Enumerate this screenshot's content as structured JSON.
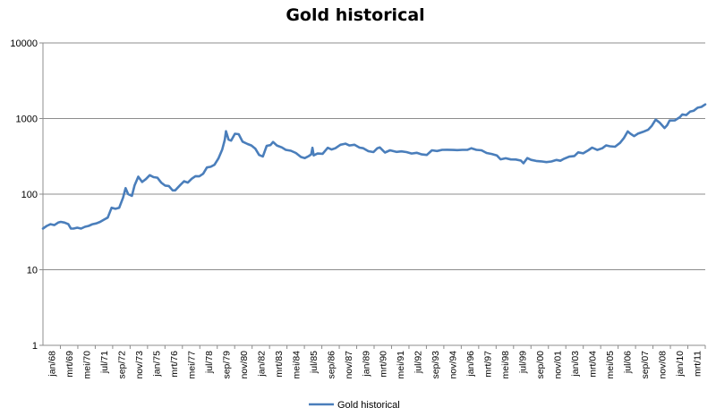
{
  "chart_data": {
    "type": "line",
    "title": "Gold historical",
    "y_scale": "log",
    "ylim": [
      1,
      10000
    ],
    "y_ticks": [
      {
        "value": 1,
        "label": "1"
      },
      {
        "value": 10,
        "label": "10"
      },
      {
        "value": 100,
        "label": "100"
      },
      {
        "value": 1000,
        "label": "1000"
      },
      {
        "value": 10000,
        "label": "10000"
      }
    ],
    "x_ticks": [
      "jan/68",
      "mrt/69",
      "mei/70",
      "jul/71",
      "sep/72",
      "nov/73",
      "jan/75",
      "mrt/76",
      "mei/77",
      "jul/78",
      "sep/79",
      "nov/80",
      "jan/82",
      "mrt/83",
      "mei/84",
      "jul/85",
      "sep/86",
      "nov/87",
      "jan/89",
      "mrt/90",
      "mei/91",
      "jul/92",
      "sep/93",
      "nov/94",
      "jan/96",
      "mrt/97",
      "mei/98",
      "jul/99",
      "sep/00",
      "nov/01",
      "jan/03",
      "mrt/04",
      "mei/05",
      "jul/06",
      "sep/07",
      "nov/08",
      "jan/10",
      "mrt/11"
    ],
    "x_range": [
      "1968-01",
      "2011-06"
    ],
    "grid": true,
    "legend_position": "bottom",
    "line_color": "#4a7ebb",
    "series": [
      {
        "name": "Gold historical",
        "points": [
          [
            "1968-01",
            35
          ],
          [
            "1968-04",
            38
          ],
          [
            "1968-07",
            40
          ],
          [
            "1968-10",
            39
          ],
          [
            "1969-01",
            42
          ],
          [
            "1969-03",
            43
          ],
          [
            "1969-06",
            42
          ],
          [
            "1969-09",
            40
          ],
          [
            "1969-11",
            35
          ],
          [
            "1970-01",
            35
          ],
          [
            "1970-04",
            36
          ],
          [
            "1970-07",
            35
          ],
          [
            "1970-10",
            37
          ],
          [
            "1971-01",
            38
          ],
          [
            "1971-04",
            40
          ],
          [
            "1971-07",
            41
          ],
          [
            "1971-10",
            43
          ],
          [
            "1972-01",
            46
          ],
          [
            "1972-04",
            49
          ],
          [
            "1972-07",
            66
          ],
          [
            "1972-10",
            64
          ],
          [
            "1973-01",
            66
          ],
          [
            "1973-04",
            90
          ],
          [
            "1973-06",
            120
          ],
          [
            "1973-08",
            100
          ],
          [
            "1973-11",
            95
          ],
          [
            "1974-01",
            130
          ],
          [
            "1974-04",
            170
          ],
          [
            "1974-07",
            145
          ],
          [
            "1974-10",
            158
          ],
          [
            "1975-01",
            178
          ],
          [
            "1975-04",
            168
          ],
          [
            "1975-07",
            165
          ],
          [
            "1975-10",
            142
          ],
          [
            "1976-01",
            130
          ],
          [
            "1976-04",
            128
          ],
          [
            "1976-07",
            112
          ],
          [
            "1976-09",
            112
          ],
          [
            "1977-01",
            132
          ],
          [
            "1977-04",
            148
          ],
          [
            "1977-07",
            142
          ],
          [
            "1977-10",
            160
          ],
          [
            "1978-01",
            173
          ],
          [
            "1978-04",
            172
          ],
          [
            "1978-07",
            186
          ],
          [
            "1978-10",
            225
          ],
          [
            "1979-01",
            230
          ],
          [
            "1979-04",
            245
          ],
          [
            "1979-07",
            296
          ],
          [
            "1979-10",
            390
          ],
          [
            "1979-12",
            520
          ],
          [
            "1980-01",
            680
          ],
          [
            "1980-03",
            525
          ],
          [
            "1980-05",
            510
          ],
          [
            "1980-08",
            630
          ],
          [
            "1980-11",
            620
          ],
          [
            "1981-02",
            495
          ],
          [
            "1981-06",
            460
          ],
          [
            "1981-09",
            440
          ],
          [
            "1981-12",
            400
          ],
          [
            "1982-03",
            330
          ],
          [
            "1982-06",
            315
          ],
          [
            "1982-09",
            435
          ],
          [
            "1982-12",
            445
          ],
          [
            "1983-02",
            490
          ],
          [
            "1983-05",
            440
          ],
          [
            "1983-09",
            415
          ],
          [
            "1983-12",
            385
          ],
          [
            "1984-04",
            375
          ],
          [
            "1984-08",
            350
          ],
          [
            "1984-12",
            310
          ],
          [
            "1985-03",
            300
          ],
          [
            "1985-06",
            318
          ],
          [
            "1985-08",
            335
          ],
          [
            "1985-09",
            410
          ],
          [
            "1985-10",
            325
          ],
          [
            "1986-01",
            345
          ],
          [
            "1986-05",
            342
          ],
          [
            "1986-09",
            410
          ],
          [
            "1986-12",
            390
          ],
          [
            "1987-03",
            405
          ],
          [
            "1987-07",
            450
          ],
          [
            "1987-11",
            465
          ],
          [
            "1988-02",
            440
          ],
          [
            "1988-06",
            450
          ],
          [
            "1988-10",
            412
          ],
          [
            "1989-01",
            405
          ],
          [
            "1989-05",
            370
          ],
          [
            "1989-09",
            360
          ],
          [
            "1989-12",
            405
          ],
          [
            "1990-02",
            415
          ],
          [
            "1990-06",
            355
          ],
          [
            "1990-10",
            380
          ],
          [
            "1991-03",
            362
          ],
          [
            "1991-07",
            368
          ],
          [
            "1991-11",
            360
          ],
          [
            "1992-03",
            345
          ],
          [
            "1992-07",
            352
          ],
          [
            "1992-11",
            335
          ],
          [
            "1993-03",
            330
          ],
          [
            "1993-07",
            380
          ],
          [
            "1993-11",
            372
          ],
          [
            "1994-03",
            385
          ],
          [
            "1994-07",
            386
          ],
          [
            "1994-11",
            384
          ],
          [
            "1995-03",
            382
          ],
          [
            "1995-07",
            385
          ],
          [
            "1995-11",
            386
          ],
          [
            "1996-02",
            405
          ],
          [
            "1996-06",
            385
          ],
          [
            "1996-10",
            380
          ],
          [
            "1997-02",
            350
          ],
          [
            "1997-06",
            340
          ],
          [
            "1997-10",
            325
          ],
          [
            "1998-01",
            289
          ],
          [
            "1998-05",
            298
          ],
          [
            "1998-09",
            288
          ],
          [
            "1999-01",
            287
          ],
          [
            "1999-05",
            278
          ],
          [
            "1999-07",
            256
          ],
          [
            "1999-10",
            300
          ],
          [
            "2000-01",
            284
          ],
          [
            "2000-05",
            275
          ],
          [
            "2000-09",
            271
          ],
          [
            "2001-01",
            265
          ],
          [
            "2001-05",
            270
          ],
          [
            "2001-09",
            283
          ],
          [
            "2001-12",
            276
          ],
          [
            "2002-03",
            294
          ],
          [
            "2002-07",
            313
          ],
          [
            "2002-11",
            319
          ],
          [
            "2003-02",
            357
          ],
          [
            "2003-06",
            346
          ],
          [
            "2003-10",
            380
          ],
          [
            "2004-01",
            412
          ],
          [
            "2004-05",
            384
          ],
          [
            "2004-09",
            405
          ],
          [
            "2004-12",
            442
          ],
          [
            "2005-03",
            430
          ],
          [
            "2005-07",
            424
          ],
          [
            "2005-11",
            476
          ],
          [
            "2006-02",
            552
          ],
          [
            "2006-05",
            675
          ],
          [
            "2006-07",
            633
          ],
          [
            "2006-10",
            585
          ],
          [
            "2007-01",
            631
          ],
          [
            "2007-05",
            667
          ],
          [
            "2007-09",
            710
          ],
          [
            "2007-12",
            803
          ],
          [
            "2008-03",
            968
          ],
          [
            "2008-06",
            888
          ],
          [
            "2008-10",
            750
          ],
          [
            "2008-12",
            816
          ],
          [
            "2009-02",
            943
          ],
          [
            "2009-06",
            945
          ],
          [
            "2009-10",
            1043
          ],
          [
            "2009-12",
            1134
          ],
          [
            "2010-03",
            1113
          ],
          [
            "2010-06",
            1233
          ],
          [
            "2010-09",
            1271
          ],
          [
            "2010-12",
            1391
          ],
          [
            "2011-03",
            1424
          ],
          [
            "2011-06",
            1540
          ]
        ]
      }
    ]
  }
}
